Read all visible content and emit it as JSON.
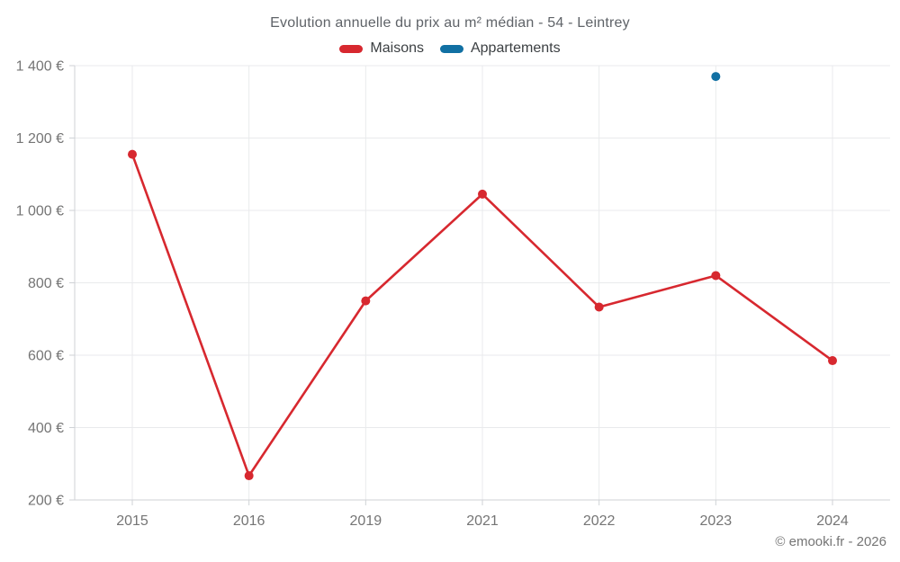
{
  "header": {
    "title": "Evolution annuelle du prix au m² médian - 54 - Leintrey"
  },
  "legend": {
    "items": [
      {
        "label": "Maisons",
        "color": "#d7282f"
      },
      {
        "label": "Appartements",
        "color": "#1170a3"
      }
    ]
  },
  "footer": {
    "copyright": "© emooki.fr - 2026"
  },
  "chart_data": {
    "type": "line",
    "title": "Evolution annuelle du prix au m² médian - 54 - Leintrey",
    "categories": [
      "2015",
      "2016",
      "2019",
      "2021",
      "2022",
      "2023",
      "2024"
    ],
    "series": [
      {
        "name": "Maisons",
        "color": "#d7282f",
        "values": [
          1155,
          267,
          750,
          1045,
          733,
          820,
          585
        ]
      },
      {
        "name": "Appartements",
        "color": "#1170a3",
        "values": [
          null,
          null,
          null,
          null,
          null,
          1370,
          null
        ]
      }
    ],
    "ylim": [
      200,
      1400
    ],
    "ytick_step": 200,
    "ytick_labels": [
      "200 €",
      "400 €",
      "600 €",
      "800 €",
      "1 000 €",
      "1 200 €",
      "1 400 €"
    ],
    "grid": true,
    "legend_position": "top",
    "colors": {
      "grid_line": "#e9eaec",
      "axis_line": "#cfd2d6",
      "tick_label": "#757575"
    }
  }
}
